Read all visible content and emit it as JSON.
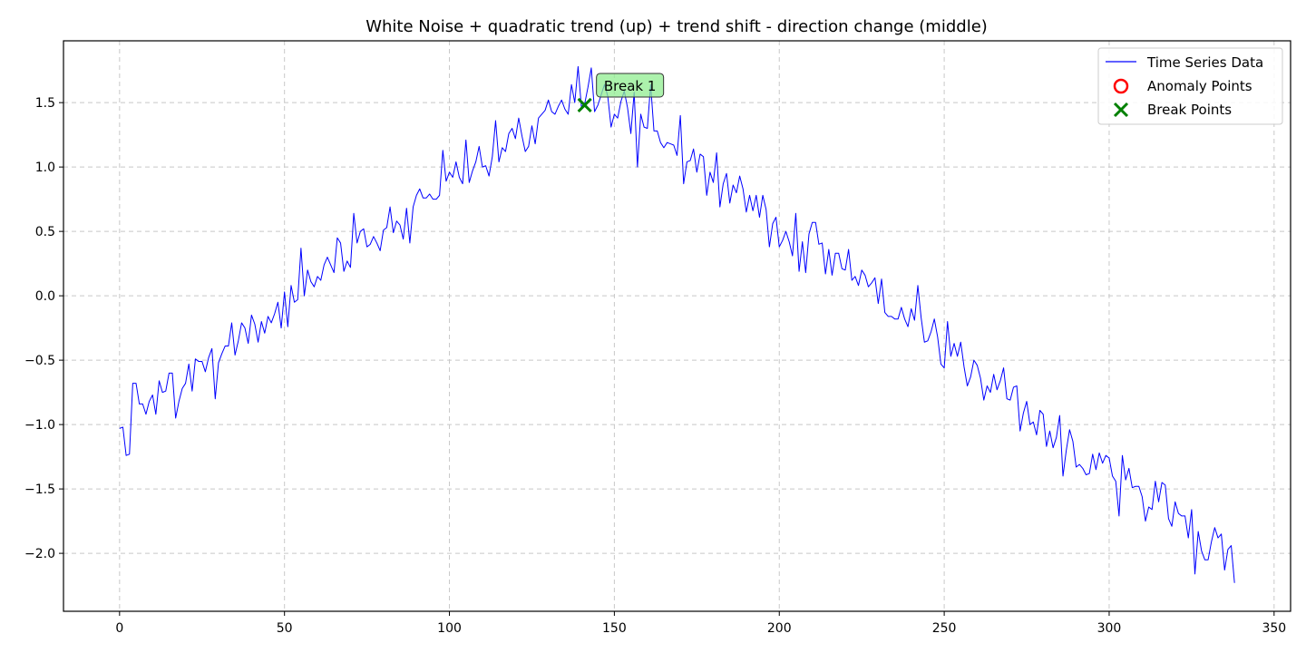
{
  "chart_data": {
    "type": "line",
    "title": "White Noise + quadratic trend (up) + trend shift - direction change (middle)",
    "xlabel": "",
    "ylabel": "",
    "xlim": [
      -17,
      355
    ],
    "ylim": [
      -2.45,
      1.98
    ],
    "x_ticks": [
      0,
      50,
      100,
      150,
      200,
      250,
      300,
      350
    ],
    "y_ticks": [
      -2.0,
      -1.5,
      -1.0,
      -0.5,
      0.0,
      0.5,
      1.0,
      1.5
    ],
    "y_tick_labels": [
      "−2.0",
      "−1.5",
      "−1.0",
      "−0.5",
      "0.0",
      "0.5",
      "1.0",
      "1.5"
    ],
    "grid": true,
    "legend_position": "top-right",
    "series": [
      {
        "name": "Time Series Data",
        "color": "#0000ff",
        "x_start": 0,
        "x_step": 1,
        "values": [
          -1.03,
          -1.02,
          -1.24,
          -1.23,
          -0.68,
          -0.68,
          -0.84,
          -0.84,
          -0.92,
          -0.82,
          -0.77,
          -0.92,
          -0.66,
          -0.75,
          -0.74,
          -0.6,
          -0.6,
          -0.95,
          -0.82,
          -0.72,
          -0.68,
          -0.53,
          -0.74,
          -0.49,
          -0.51,
          -0.51,
          -0.59,
          -0.48,
          -0.41,
          -0.8,
          -0.52,
          -0.45,
          -0.39,
          -0.39,
          -0.21,
          -0.46,
          -0.35,
          -0.21,
          -0.25,
          -0.37,
          -0.15,
          -0.22,
          -0.36,
          -0.2,
          -0.29,
          -0.16,
          -0.21,
          -0.14,
          -0.05,
          -0.25,
          0.03,
          -0.24,
          0.08,
          -0.05,
          -0.03,
          0.37,
          0.0,
          0.2,
          0.11,
          0.07,
          0.15,
          0.12,
          0.24,
          0.3,
          0.24,
          0.18,
          0.45,
          0.41,
          0.19,
          0.27,
          0.22,
          0.64,
          0.41,
          0.5,
          0.52,
          0.38,
          0.4,
          0.46,
          0.41,
          0.35,
          0.51,
          0.53,
          0.69,
          0.49,
          0.58,
          0.55,
          0.44,
          0.68,
          0.41,
          0.69,
          0.78,
          0.83,
          0.76,
          0.76,
          0.79,
          0.75,
          0.75,
          0.78,
          1.13,
          0.89,
          0.96,
          0.92,
          1.04,
          0.92,
          0.87,
          1.21,
          0.88,
          0.97,
          1.04,
          1.16,
          1.0,
          1.01,
          0.93,
          1.08,
          1.36,
          1.04,
          1.15,
          1.12,
          1.26,
          1.3,
          1.22,
          1.38,
          1.24,
          1.12,
          1.16,
          1.32,
          1.18,
          1.38,
          1.41,
          1.44,
          1.52,
          1.43,
          1.41,
          1.47,
          1.52,
          1.45,
          1.41,
          1.64,
          1.5,
          1.78,
          1.47,
          1.49,
          1.62,
          1.77,
          1.43,
          1.48,
          1.56,
          1.64,
          1.55,
          1.31,
          1.41,
          1.38,
          1.51,
          1.59,
          1.46,
          1.26,
          1.58,
          1.0,
          1.41,
          1.31,
          1.3,
          1.64,
          1.28,
          1.28,
          1.19,
          1.15,
          1.19,
          1.18,
          1.17,
          1.09,
          1.4,
          0.87,
          1.04,
          1.05,
          1.14,
          0.96,
          1.1,
          1.08,
          0.78,
          0.96,
          0.88,
          1.11,
          0.69,
          0.87,
          0.95,
          0.72,
          0.86,
          0.8,
          0.93,
          0.83,
          0.65,
          0.78,
          0.66,
          0.78,
          0.61,
          0.78,
          0.67,
          0.38,
          0.56,
          0.61,
          0.38,
          0.43,
          0.5,
          0.42,
          0.31,
          0.64,
          0.19,
          0.42,
          0.18,
          0.48,
          0.57,
          0.57,
          0.4,
          0.41,
          0.17,
          0.36,
          0.16,
          0.33,
          0.33,
          0.21,
          0.2,
          0.36,
          0.12,
          0.15,
          0.08,
          0.2,
          0.16,
          0.07,
          0.1,
          0.14,
          -0.06,
          0.13,
          -0.13,
          -0.16,
          -0.16,
          -0.18,
          -0.18,
          -0.09,
          -0.18,
          -0.24,
          -0.1,
          -0.19,
          0.08,
          -0.17,
          -0.36,
          -0.35,
          -0.28,
          -0.18,
          -0.32,
          -0.53,
          -0.56,
          -0.2,
          -0.47,
          -0.37,
          -0.47,
          -0.36,
          -0.55,
          -0.7,
          -0.63,
          -0.5,
          -0.54,
          -0.64,
          -0.81,
          -0.7,
          -0.75,
          -0.61,
          -0.73,
          -0.66,
          -0.56,
          -0.8,
          -0.81,
          -0.71,
          -0.7,
          -1.05,
          -0.91,
          -0.82,
          -1.0,
          -0.98,
          -1.08,
          -0.89,
          -0.92,
          -1.17,
          -1.05,
          -1.18,
          -1.1,
          -0.93,
          -1.4,
          -1.2,
          -1.04,
          -1.13,
          -1.33,
          -1.31,
          -1.34,
          -1.39,
          -1.38,
          -1.23,
          -1.35,
          -1.22,
          -1.3,
          -1.24,
          -1.26,
          -1.4,
          -1.44,
          -1.71,
          -1.24,
          -1.43,
          -1.34,
          -1.49,
          -1.48,
          -1.48,
          -1.56,
          -1.75,
          -1.64,
          -1.66,
          -1.44,
          -1.6,
          -1.45,
          -1.47,
          -1.73,
          -1.79,
          -1.6,
          -1.69,
          -1.71,
          -1.71,
          -1.88,
          -1.66,
          -2.16,
          -1.83,
          -1.98,
          -2.05,
          -2.05,
          -1.91,
          -1.8,
          -1.88,
          -1.85,
          -2.13,
          -1.97,
          -1.94,
          -2.23
        ]
      }
    ],
    "anomaly_points": {
      "name": "Anomaly Points",
      "color": "#ff0000",
      "points": []
    },
    "break_points": {
      "name": "Break Points",
      "color": "#008000",
      "points": [
        {
          "x": 141,
          "y": 1.48,
          "label": "Break 1"
        }
      ]
    }
  }
}
